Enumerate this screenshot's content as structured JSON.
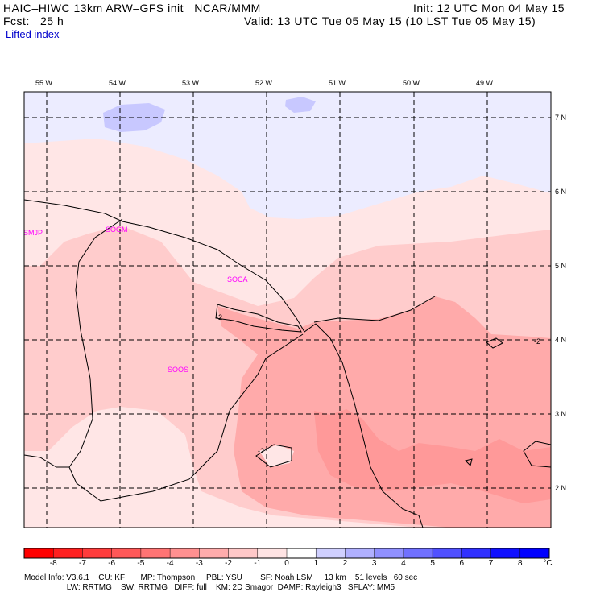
{
  "header": {
    "title": "HAIC–HIWC 13km ARW–GFS init   NCAR/MMM",
    "fcst": "Fcst:   25 h",
    "init": "Init: 12 UTC Mon 04 May 15",
    "valid": "Valid: 13 UTC Tue 05 May 15 (10 LST Tue 05 May 15)",
    "field": "Lifted index"
  },
  "map": {
    "lon_labels": [
      "55 W",
      "54 W",
      "53 W",
      "52 W",
      "51 W",
      "50 W",
      "49 W"
    ],
    "lat_labels": [
      "7 N",
      "6 N",
      "5 N",
      "4 N",
      "3 N",
      "2 N"
    ],
    "stations": [
      "SMJP",
      "SOGM",
      "SOCA",
      "SOOS"
    ],
    "contour_label": "-2",
    "colors": {
      "pos_1": "#e8e8ff",
      "pos_2": "#c8c8ff",
      "neg_0": "#ffe6e6",
      "neg_1": "#ffcccc",
      "neg_2": "#ffaaaa",
      "neg_3": "#ff9999",
      "station": "#ff00ff"
    }
  },
  "colorbar": {
    "labels": [
      "-8",
      "-7",
      "-6",
      "-5",
      "-4",
      "-3",
      "-2",
      "-1",
      "0",
      "1",
      "2",
      "3",
      "4",
      "5",
      "6",
      "7",
      "8"
    ],
    "unit": "°C",
    "colors": [
      "#ff0000",
      "#ff2020",
      "#ff3c3c",
      "#ff5858",
      "#ff7474",
      "#ff9090",
      "#ffacac",
      "#ffc8c8",
      "#ffe4e4",
      "#ffffff",
      "#d0d0ff",
      "#b0b0ff",
      "#9090ff",
      "#7070ff",
      "#5050ff",
      "#3030ff",
      "#1010ff",
      "#0000ff"
    ]
  },
  "footer": {
    "line1": "Model Info: V3.6.1    CU: KF       MP: Thompson     PBL: YSU        SF: Noah LSM     13 km    51 levels   60 sec",
    "line2": "                   LW: RRTMG    SW: RRTMG   DIFF: full    KM: 2D Smagor  DAMP: Rayleigh3   SFLAY: MM5"
  }
}
